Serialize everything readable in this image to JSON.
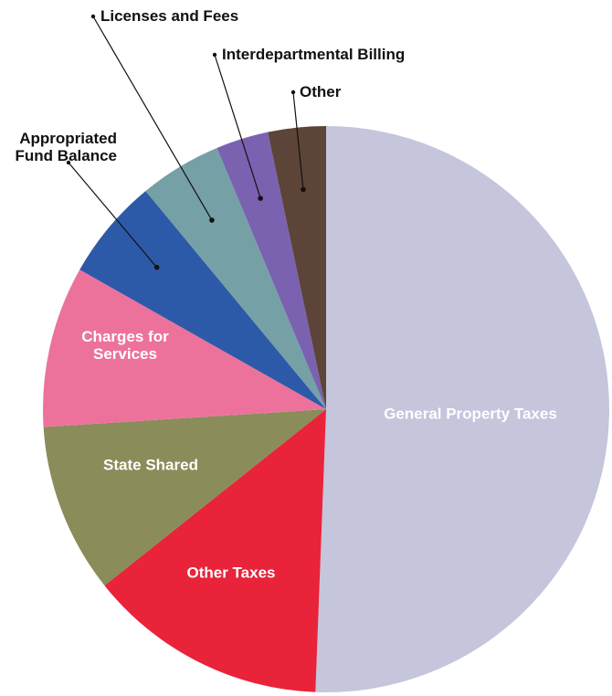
{
  "chart_data": {
    "type": "pie",
    "categories": [
      "General Property Taxes",
      "Other Taxes",
      "State Shared",
      "Charges for Services",
      "Appropriated Fund Balance",
      "Licenses and Fees",
      "Interdepartmental Billing",
      "Other"
    ],
    "values": [
      50.6,
      13.7,
      9.7,
      9.2,
      5.8,
      4.7,
      3.0,
      3.3
    ],
    "colors": [
      "#c5c5dc",
      "#e8233a",
      "#8a8c5a",
      "#ec729c",
      "#2d5aa8",
      "#75a0a6",
      "#7a62b0",
      "#5c4438"
    ]
  }
}
